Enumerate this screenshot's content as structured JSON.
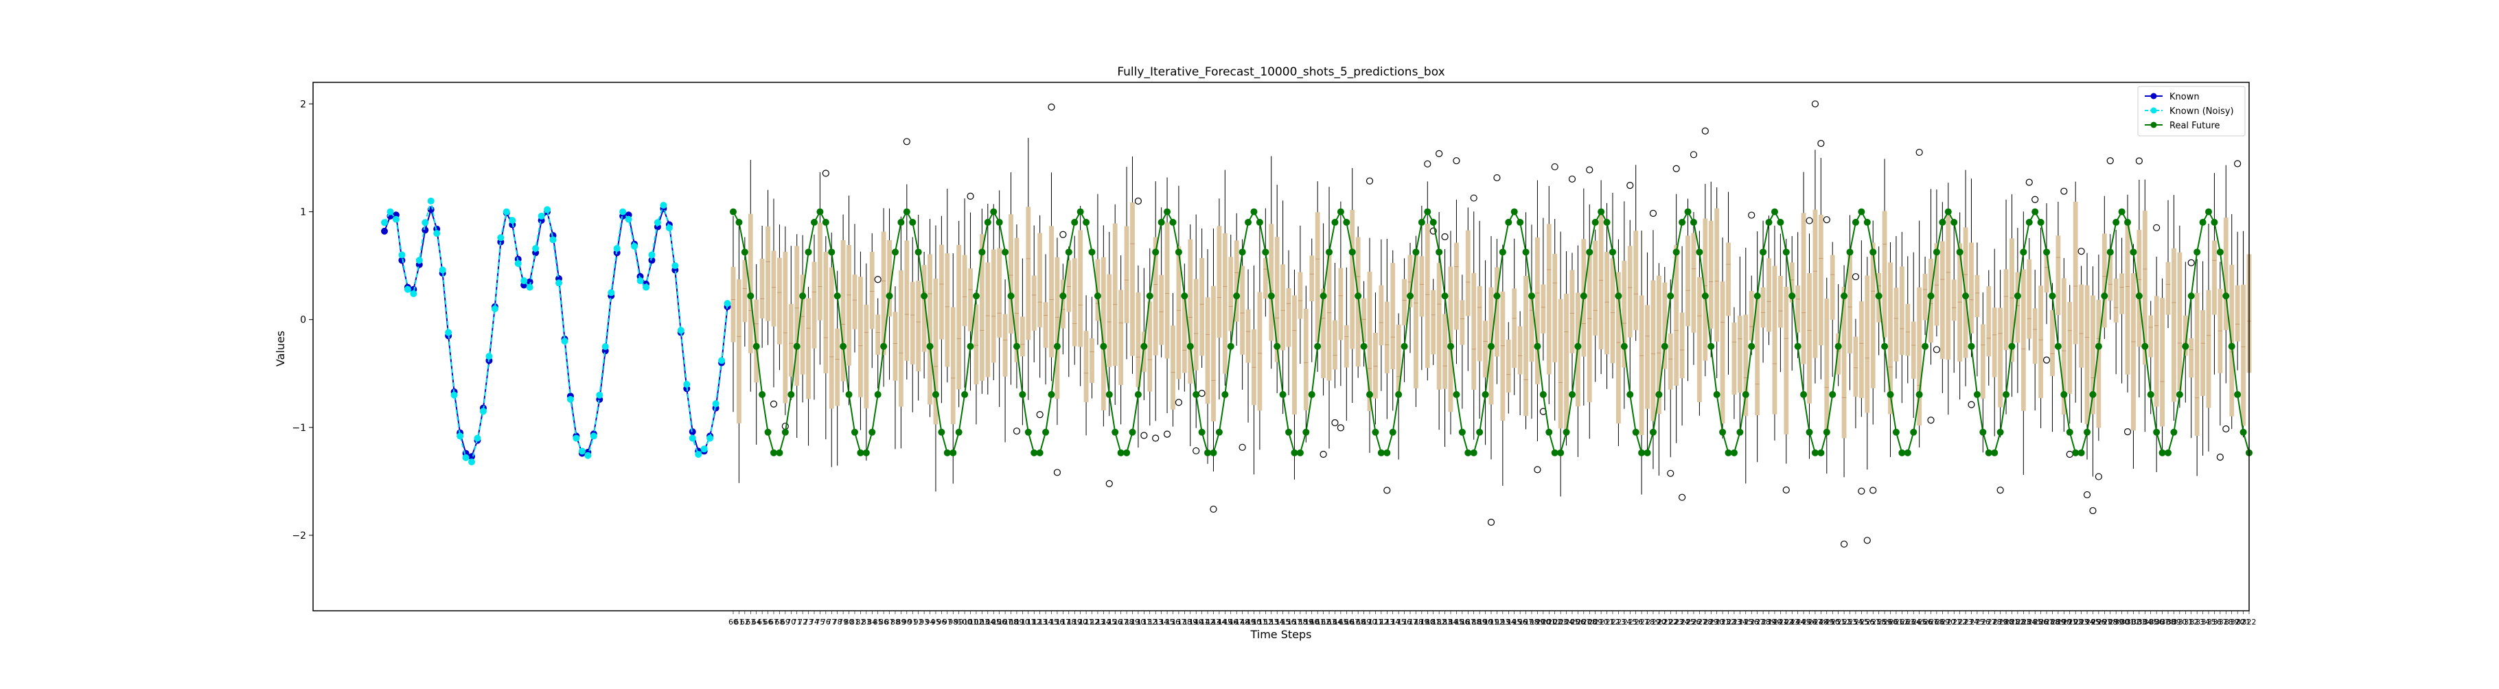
{
  "chart_data": {
    "type": "line",
    "title": "Fully_Iterative_Forecast_10000_shots_5_predictions_box",
    "xlabel": "Time Steps",
    "ylabel": "Values",
    "ylim": [
      -2.7,
      2.2
    ],
    "yticks": [
      -2,
      -1,
      0,
      1,
      2
    ],
    "legend_position": "top-right",
    "grid": false,
    "known_range": [
      0,
      59
    ],
    "future_range": [
      60,
      322
    ],
    "series": [
      {
        "name": "Known",
        "color": "#0000cc",
        "style": "solid line with circle markers",
        "x_start": 0,
        "values": [
          0.82,
          0.96,
          0.97,
          0.55,
          0.3,
          0.28,
          0.51,
          0.83,
          1.02,
          0.84,
          0.43,
          -0.15,
          -0.67,
          -1.05,
          -1.24,
          -1.27,
          -1.12,
          -0.82,
          -0.38,
          0.12,
          0.72,
          0.99,
          0.88,
          0.56,
          0.32,
          0.35,
          0.62,
          0.92,
          1.0,
          0.78,
          0.38,
          -0.18,
          -0.71,
          -1.08,
          -1.24,
          -1.23,
          -1.06,
          -0.74,
          -0.29,
          0.22,
          0.62,
          0.96,
          0.97,
          0.7,
          0.4,
          0.33,
          0.55,
          0.86,
          1.03,
          0.88,
          0.46,
          -0.12,
          -0.64,
          -1.04,
          -1.22,
          -1.22,
          -1.08,
          -0.82,
          -0.4,
          0.12
        ]
      },
      {
        "name": "Known (Noisy)",
        "color": "#00e5ee",
        "style": "dashed line with circle markers",
        "x_start": 0,
        "values": [
          0.9,
          1.0,
          0.93,
          0.6,
          0.28,
          0.24,
          0.55,
          0.9,
          1.1,
          0.8,
          0.46,
          -0.12,
          -0.7,
          -1.08,
          -1.28,
          -1.32,
          -1.1,
          -0.85,
          -0.34,
          0.1,
          0.76,
          1.0,
          0.92,
          0.52,
          0.36,
          0.3,
          0.66,
          0.96,
          1.02,
          0.74,
          0.34,
          -0.2,
          -0.74,
          -1.1,
          -1.22,
          -1.26,
          -1.08,
          -0.7,
          -0.25,
          0.25,
          0.66,
          1.0,
          0.93,
          0.68,
          0.36,
          0.3,
          0.6,
          0.9,
          1.06,
          0.85,
          0.5,
          -0.1,
          -0.6,
          -1.1,
          -1.25,
          -1.2,
          -1.1,
          -0.78,
          -0.38,
          0.15
        ]
      },
      {
        "name": "Real Future",
        "color": "#007700",
        "style": "solid line with circle markers",
        "x_start": 60,
        "period": 15,
        "amplitude": 1.13,
        "offset": -0.13,
        "phase": 0.0,
        "count": 263
      }
    ],
    "boxplots": {
      "description": "5-prediction box per future time step",
      "box_color": "#ddc7a3",
      "whisker_color": "#000000",
      "x_start": 60,
      "count": 263
    },
    "xtick_labels_start": 60,
    "xtick_labels_end": 322
  },
  "legend": {
    "items": [
      {
        "label": "Known",
        "color": "#0000cc",
        "dashed": false
      },
      {
        "label": "Known (Noisy)",
        "color": "#00e5ee",
        "dashed": true
      },
      {
        "label": "Real Future",
        "color": "#007700",
        "dashed": false
      }
    ]
  }
}
